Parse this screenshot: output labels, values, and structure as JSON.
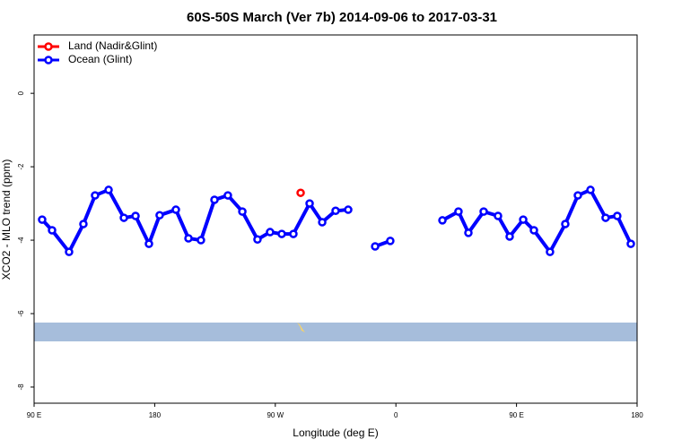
{
  "chart_data": {
    "type": "line",
    "title": "60S-50S March (Ver 7b)   2014-09-06 to 2017-03-31",
    "x_label": "Longitude (deg E)",
    "y_label": "XCO2 - MLO trend (ppm)",
    "xlim": [
      90,
      540
    ],
    "ylim": [
      -8.44,
      1.59
    ],
    "xticks": [
      {
        "value": 90,
        "label": "90 E"
      },
      {
        "value": 180,
        "label": "180"
      },
      {
        "value": 270,
        "label": "90 W"
      },
      {
        "value": 360,
        "label": "0"
      },
      {
        "value": 450,
        "label": "90 E"
      },
      {
        "value": 540,
        "label": "180"
      }
    ],
    "yticks": [
      0,
      -2,
      -4,
      -6,
      -8
    ],
    "grid": false,
    "legend": "top-left",
    "series": [
      {
        "name": "Land (Nadir&Glint)",
        "color": "#ff0000",
        "x": [
          288.9
        ],
        "values": [
          -2.71
        ]
      },
      {
        "name": "Ocean (Glint)",
        "color": "#0000ff",
        "x": [
          96,
          103.4,
          116.1,
          126.8,
          135.5,
          145.6,
          157,
          165.7,
          175.7,
          183.7,
          195.8,
          205.2,
          214.5,
          224.6,
          234.6,
          245.4,
          256.7,
          266.1,
          274.8,
          283.5,
          295.6,
          305,
          315,
          324.4,
          null,
          344.5,
          355.8,
          null,
          394.7,
          406.7,
          414.1,
          425.5,
          436.2,
          444.9,
          455,
          463,
          475,
          486.4,
          495.8,
          505.2,
          516.5,
          525.2,
          535.3
        ],
        "values": [
          -3.44,
          -3.73,
          -4.32,
          -3.56,
          -2.78,
          -2.63,
          -3.39,
          -3.34,
          -4.1,
          -3.32,
          -3.17,
          -3.95,
          -4.0,
          -2.9,
          -2.78,
          -3.22,
          -3.98,
          -3.78,
          -3.83,
          -3.83,
          -3.0,
          -3.51,
          -3.2,
          -3.17,
          null,
          -4.17,
          -4.02,
          null,
          -3.46,
          -3.22,
          -3.8,
          -3.22,
          -3.34,
          -3.9,
          -3.44,
          -3.73,
          -4.32,
          -3.56,
          -2.78,
          -2.63,
          -3.39,
          -3.34,
          -4.1
        ]
      }
    ]
  }
}
